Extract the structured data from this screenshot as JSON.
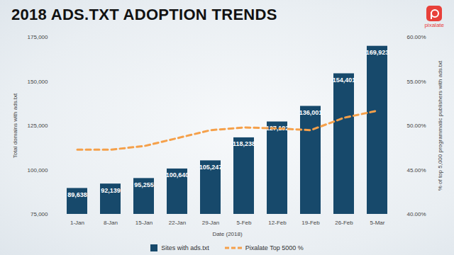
{
  "chart_data": {
    "type": "bar",
    "title": "2018 ADS.TXT ADOPTION TRENDS",
    "logo": "pixalate",
    "x_label": "Date (2018)",
    "y_label": "Total domains with ads.txt",
    "y2_label": "% of top 5,000 programmatic publishers with ads.txt",
    "categories": [
      "1-Jan",
      "8-Jan",
      "15-Jan",
      "22-Jan",
      "29-Jan",
      "5-Feb",
      "12-Feb",
      "19-Feb",
      "26-Feb",
      "5-Mar"
    ],
    "series": [
      {
        "name": "Sites with ads.txt",
        "type": "bar",
        "color": "#17496b",
        "data_labels": true,
        "values": [
          89638,
          92139,
          95255,
          100640,
          105247,
          118238,
          127192,
          136001,
          154401,
          169923
        ],
        "value_labels": [
          "89,638",
          "92,139",
          "95,255",
          "100,640",
          "105,247",
          "118,238",
          "127,192",
          "136,001",
          "154,401",
          "169,923"
        ]
      },
      {
        "name": "Pixalate Top 5000 %",
        "type": "line",
        "axis": "y2",
        "color": "#f5a04a",
        "line_style": "dashed",
        "values": [
          47.3,
          47.3,
          47.7,
          48.6,
          49.5,
          49.8,
          49.7,
          49.5,
          50.9,
          51.7
        ]
      }
    ],
    "ylim": [
      75000,
      175000
    ],
    "yticks": [
      {
        "value": 75000,
        "label": "75,000"
      },
      {
        "value": 100000,
        "label": "100,000"
      },
      {
        "value": 125000,
        "label": "125,000"
      },
      {
        "value": 150000,
        "label": "150,000"
      },
      {
        "value": 175000,
        "label": "175,000"
      }
    ],
    "y2lim": [
      40,
      60
    ],
    "y2ticks": [
      {
        "value": 40,
        "label": "40.00%"
      },
      {
        "value": 45,
        "label": "45.00%"
      },
      {
        "value": 50,
        "label": "50.00%"
      },
      {
        "value": 55,
        "label": "55.00%"
      },
      {
        "value": 60,
        "label": "60.00%"
      }
    ],
    "grid": false,
    "legend": "bottom"
  }
}
